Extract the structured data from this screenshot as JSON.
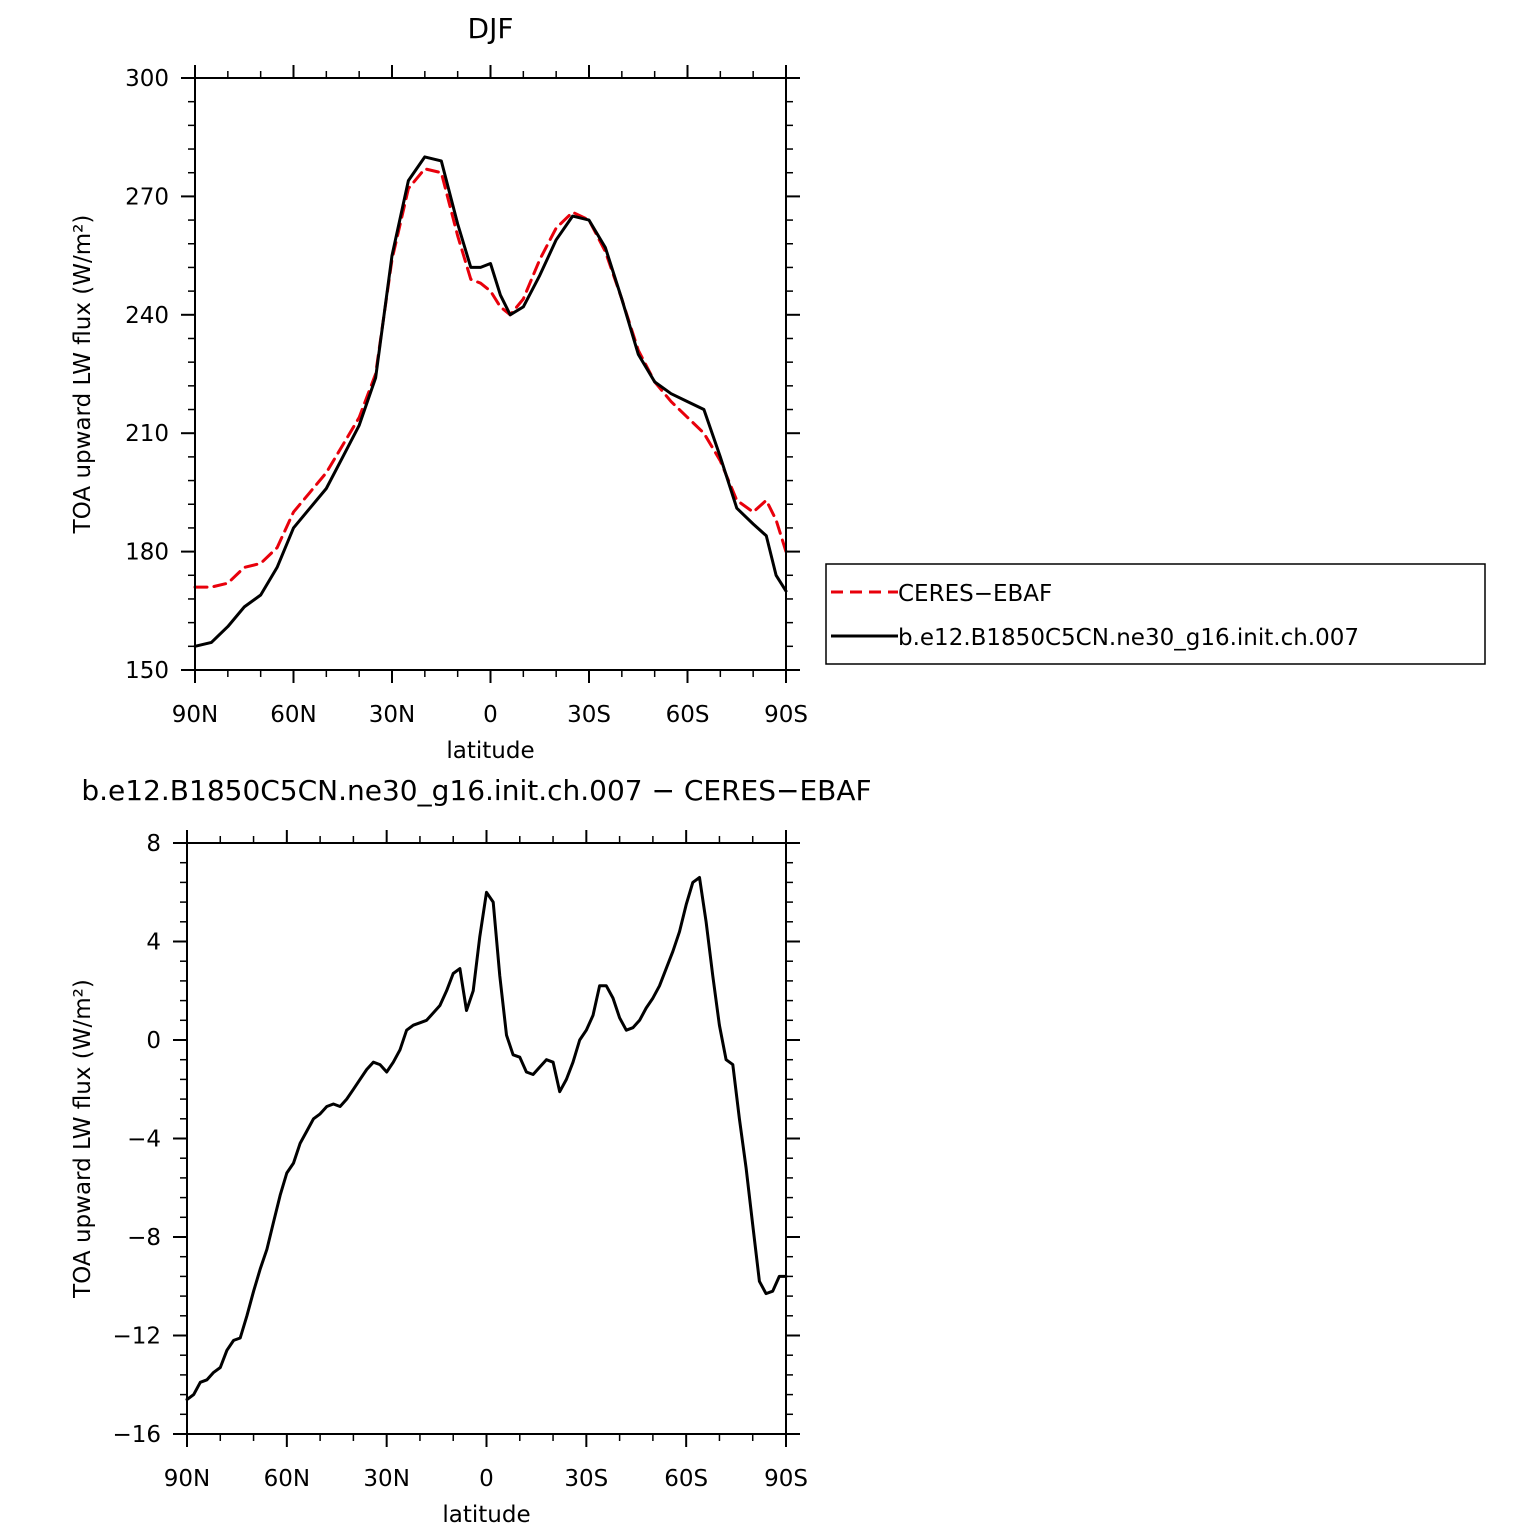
{
  "chart_data": [
    {
      "type": "line",
      "title": "DJF",
      "xlabel": "latitude",
      "ylabel": "TOA upward LW flux (W/m²)",
      "xlim": [
        90,
        -90
      ],
      "ylim": [
        150,
        300
      ],
      "x_ticks": [
        {
          "value": 90,
          "label": "90N"
        },
        {
          "value": 60,
          "label": "60N"
        },
        {
          "value": 30,
          "label": "30N"
        },
        {
          "value": 0,
          "label": "0"
        },
        {
          "value": -30,
          "label": "30S"
        },
        {
          "value": -60,
          "label": "60S"
        },
        {
          "value": -90,
          "label": "90S"
        }
      ],
      "y_ticks": [
        150,
        180,
        210,
        240,
        270,
        300
      ],
      "y_tick_labels": [
        "150",
        "180",
        "210",
        "240",
        "270",
        "300"
      ],
      "legend_position": "right",
      "series": [
        {
          "name": "CERES−EBAF",
          "color": "#e8000b",
          "dash": "dashed",
          "x": [
            90,
            85,
            80,
            75,
            70,
            65,
            60,
            55,
            50,
            45,
            40,
            35,
            30,
            25,
            20,
            15,
            10,
            6,
            3,
            0,
            -3,
            -6,
            -10,
            -15,
            -20,
            -25,
            -30,
            -35,
            -40,
            -45,
            -50,
            -55,
            -60,
            -65,
            -70,
            -75,
            -80,
            -84,
            -87,
            -90
          ],
          "y": [
            171,
            171,
            172,
            176,
            177,
            181,
            190,
            195,
            200,
            207,
            214,
            225,
            254,
            272,
            277,
            276,
            260,
            249,
            248,
            246,
            242,
            240,
            244,
            254,
            262,
            266,
            264,
            256,
            244,
            231,
            223,
            218,
            214,
            210,
            203,
            193,
            190,
            193,
            188,
            180
          ]
        },
        {
          "name": "b.e12.B1850C5CN.ne30_g16.init.ch.007",
          "color": "#000000",
          "dash": "solid",
          "x": [
            90,
            85,
            80,
            75,
            70,
            65,
            60,
            55,
            50,
            45,
            40,
            35,
            30,
            25,
            20,
            15,
            10,
            6,
            3,
            0,
            -3,
            -6,
            -10,
            -15,
            -20,
            -25,
            -30,
            -35,
            -40,
            -45,
            -50,
            -55,
            -60,
            -65,
            -70,
            -75,
            -80,
            -84,
            -87,
            -90
          ],
          "y": [
            156,
            157,
            161,
            166,
            169,
            176,
            186,
            191,
            196,
            204,
            212,
            224,
            255,
            274,
            280,
            279,
            263,
            252,
            252,
            253,
            245,
            240,
            242,
            250,
            259,
            265,
            264,
            257,
            244,
            230,
            223,
            220,
            218,
            216,
            204,
            191,
            187,
            184,
            174,
            170
          ]
        }
      ]
    },
    {
      "type": "line",
      "title": "b.e12.B1850C5CN.ne30_g16.init.ch.007 − CERES−EBAF",
      "xlabel": "latitude",
      "ylabel": "TOA upward LW flux (W/m²)",
      "xlim": [
        90,
        -90
      ],
      "ylim": [
        -16,
        8
      ],
      "x_ticks": [
        {
          "value": 90,
          "label": "90N"
        },
        {
          "value": 60,
          "label": "60N"
        },
        {
          "value": 30,
          "label": "30N"
        },
        {
          "value": 0,
          "label": "0"
        },
        {
          "value": -30,
          "label": "30S"
        },
        {
          "value": -60,
          "label": "60S"
        },
        {
          "value": -90,
          "label": "90S"
        }
      ],
      "y_ticks": [
        -16,
        -12,
        -8,
        -4,
        0,
        4,
        8
      ],
      "y_tick_labels": [
        "−16",
        "−12",
        "−8",
        "−4",
        "0",
        "4",
        "8"
      ],
      "series": [
        {
          "name": "",
          "color": "#000000",
          "dash": "solid",
          "x": [
            90,
            88,
            86,
            84,
            82,
            80,
            78,
            76,
            74,
            72,
            70,
            68,
            66,
            64,
            62,
            60,
            58,
            56,
            54,
            52,
            50,
            48,
            46,
            44,
            42,
            40,
            38,
            36,
            34,
            32,
            30,
            28,
            26,
            24,
            22,
            20,
            18,
            16,
            14,
            12,
            10,
            8,
            6,
            4,
            2,
            0,
            -2,
            -4,
            -6,
            -8,
            -10,
            -12,
            -14,
            -16,
            -18,
            -20,
            -22,
            -24,
            -26,
            -28,
            -30,
            -32,
            -34,
            -36,
            -38,
            -40,
            -42,
            -44,
            -46,
            -48,
            -50,
            -52,
            -54,
            -56,
            -58,
            -60,
            -62,
            -64,
            -66,
            -68,
            -70,
            -72,
            -74,
            -76,
            -78,
            -80,
            -82,
            -84,
            -86,
            -88,
            -90
          ],
          "y": [
            -14.6,
            -14.4,
            -13.9,
            -13.8,
            -13.5,
            -13.3,
            -12.6,
            -12.2,
            -12.1,
            -11.2,
            -10.2,
            -9.3,
            -8.5,
            -7.4,
            -6.3,
            -5.4,
            -5.0,
            -4.2,
            -3.7,
            -3.2,
            -3.0,
            -2.7,
            -2.6,
            -2.7,
            -2.4,
            -2.0,
            -1.6,
            -1.2,
            -0.9,
            -1.0,
            -1.3,
            -0.9,
            -0.4,
            0.4,
            0.6,
            0.7,
            0.8,
            1.1,
            1.4,
            2.0,
            2.7,
            2.9,
            1.2,
            2.0,
            4.2,
            6.0,
            5.6,
            2.6,
            0.2,
            -0.6,
            -0.7,
            -1.3,
            -1.4,
            -1.1,
            -0.8,
            -0.9,
            -2.1,
            -1.6,
            -0.9,
            0.0,
            0.4,
            1.0,
            2.2,
            2.2,
            1.7,
            0.9,
            0.4,
            0.5,
            0.8,
            1.3,
            1.7,
            2.2,
            2.9,
            3.6,
            4.4,
            5.5,
            6.4,
            6.6,
            4.8,
            2.6,
            0.6,
            -0.8,
            -1.0,
            -3.2,
            -5.2,
            -7.5,
            -9.8,
            -10.3,
            -10.2,
            -9.6,
            -9.6
          ]
        }
      ]
    }
  ]
}
